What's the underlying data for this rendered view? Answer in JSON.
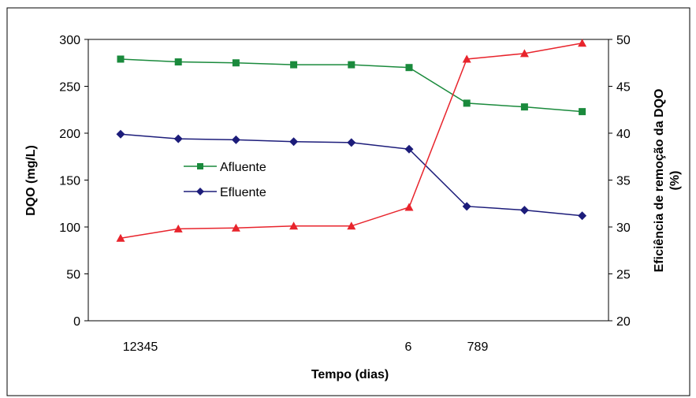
{
  "chart_data": {
    "type": "line",
    "x_tick_labels": [
      "12345",
      "6",
      "789"
    ],
    "xlabel": "Tempo (dias)",
    "ylabel": "DQO (mg/L)",
    "y2label_line1": "Eficiência de remoção da DQO",
    "y2label_line2": "(%)",
    "ylim": [
      0,
      300
    ],
    "y_ticks": [
      0,
      50,
      100,
      150,
      200,
      250,
      300
    ],
    "y2lim": [
      20,
      50
    ],
    "y2_ticks": [
      20,
      25,
      30,
      35,
      40,
      45,
      50
    ],
    "x": [
      1,
      2,
      3,
      4,
      5,
      6,
      7,
      8,
      9
    ],
    "series": [
      {
        "name": "Afluente",
        "axis": "left",
        "color": "#1a8a3c",
        "marker": "square",
        "values": [
          279,
          276,
          275,
          273,
          273,
          270,
          232,
          228,
          223
        ]
      },
      {
        "name": "Efluente",
        "axis": "left",
        "color": "#1c1c7a",
        "marker": "diamond",
        "values": [
          199,
          194,
          193,
          191,
          190,
          183,
          122,
          118,
          112
        ]
      },
      {
        "axis": "right",
        "color": "#e8242c",
        "marker": "triangle",
        "values": [
          28.8,
          29.8,
          29.9,
          30.1,
          30.1,
          32.1,
          47.9,
          48.5,
          49.6
        ]
      }
    ],
    "legend": "inside-left",
    "grid": false
  }
}
